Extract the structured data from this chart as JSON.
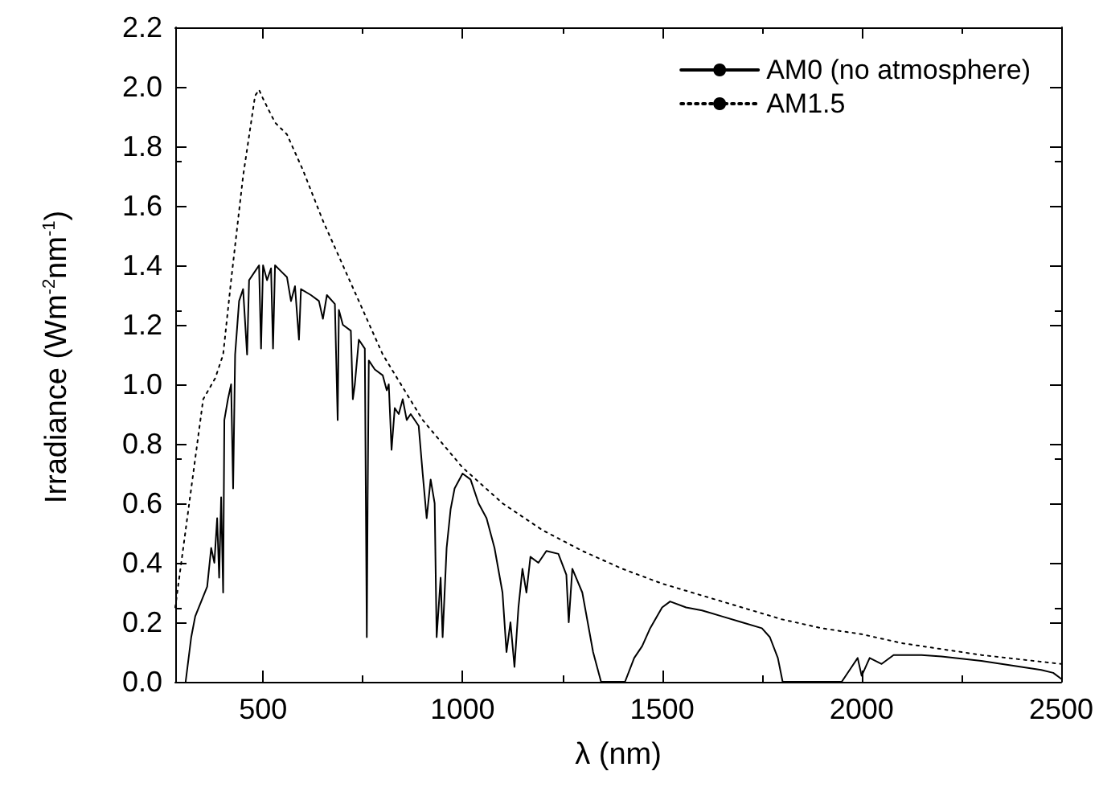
{
  "chart_data": {
    "type": "line",
    "xlabel": "λ (nm)",
    "ylabel": "Irradiance (Wm$^{-2}$nm$^{-1}$)",
    "xlim": [
      280,
      2500
    ],
    "xticks": [
      500,
      1000,
      1500,
      2000,
      2500
    ],
    "ylim": [
      0,
      2.2
    ],
    "yticks": [
      {
        "value": 0,
        "label": "0.0"
      },
      {
        "value": 0.2,
        "label": "0.2"
      },
      {
        "value": 0.4,
        "label": "0.4"
      },
      {
        "value": 0.6,
        "label": "0.6"
      },
      {
        "value": 0.8,
        "label": "0.8"
      },
      {
        "value": 1,
        "label": "1.0"
      },
      {
        "value": 1.2,
        "label": "1.2"
      },
      {
        "value": 1.4,
        "label": "1.4"
      },
      {
        "value": 1.6,
        "label": "1.6"
      },
      {
        "value": 1.8,
        "label": "1.8"
      },
      {
        "value": 2,
        "label": "2.0"
      },
      {
        "value": 2.2,
        "label": "2.2"
      }
    ],
    "legend": "top right",
    "grid": false,
    "marker": "none",
    "series": [
      {
        "name": "AM0 (no atmosphere)",
        "color": "#000000",
        "line_style": "solid",
        "x": [
          306,
          320,
          330,
          345,
          360,
          370,
          378,
          385,
          390,
          395,
          400,
          403,
          412,
          420,
          425,
          430,
          440,
          450,
          460,
          465,
          480,
          490,
          495,
          500,
          510,
          520,
          525,
          530,
          545,
          560,
          570,
          580,
          590,
          595,
          620,
          640,
          650,
          660,
          680,
          687,
          690,
          700,
          720,
          725,
          730,
          740,
          755,
          760,
          762,
          765,
          780,
          800,
          810,
          815,
          822,
          830,
          840,
          850,
          860,
          870,
          890,
          900,
          910,
          920,
          930,
          935,
          945,
          950,
          960,
          970,
          980,
          1000,
          1020,
          1040,
          1060,
          1080,
          1100,
          1110,
          1120,
          1130,
          1140,
          1150,
          1160,
          1170,
          1190,
          1210,
          1240,
          1260,
          1266,
          1275,
          1300,
          1327,
          1347,
          1407,
          1430,
          1450,
          1470,
          1500,
          1520,
          1560,
          1600,
          1650,
          1700,
          1750,
          1770,
          1790,
          1802,
          1950,
          1975,
          1990,
          2000,
          2020,
          2050,
          2080,
          2150,
          2200,
          2300,
          2400,
          2450,
          2480,
          2500
        ],
        "values": [
          0,
          0.15,
          0.22,
          0.27,
          0.32,
          0.45,
          0.4,
          0.55,
          0.35,
          0.62,
          0.3,
          0.88,
          0.95,
          1.0,
          0.65,
          1.1,
          1.28,
          1.32,
          1.1,
          1.35,
          1.38,
          1.4,
          1.12,
          1.4,
          1.35,
          1.39,
          1.12,
          1.4,
          1.38,
          1.36,
          1.28,
          1.33,
          1.15,
          1.32,
          1.3,
          1.28,
          1.22,
          1.3,
          1.27,
          0.88,
          1.25,
          1.2,
          1.18,
          0.95,
          1.0,
          1.15,
          1.12,
          0.15,
          0.6,
          1.08,
          1.05,
          1.03,
          0.98,
          1.0,
          0.78,
          0.92,
          0.9,
          0.95,
          0.88,
          0.9,
          0.86,
          0.7,
          0.55,
          0.68,
          0.6,
          0.15,
          0.35,
          0.15,
          0.45,
          0.58,
          0.65,
          0.7,
          0.68,
          0.6,
          0.55,
          0.45,
          0.3,
          0.1,
          0.2,
          0.05,
          0.25,
          0.38,
          0.3,
          0.42,
          0.4,
          0.44,
          0.43,
          0.36,
          0.2,
          0.38,
          0.3,
          0.1,
          0,
          0,
          0.08,
          0.12,
          0.18,
          0.25,
          0.27,
          0.25,
          0.24,
          0.22,
          0.2,
          0.18,
          0.15,
          0.08,
          0,
          0,
          0.05,
          0.08,
          0.02,
          0.08,
          0.06,
          0.09,
          0.09,
          0.085,
          0.07,
          0.05,
          0.04,
          0.03,
          0.01
        ]
      },
      {
        "name": "AM1.5",
        "color": "#000000",
        "line_style": "dotted",
        "x": [
          280,
          300,
          330,
          350,
          380,
          400,
          420,
          450,
          480,
          490,
          500,
          530,
          560,
          600,
          650,
          700,
          750,
          800,
          900,
          1000,
          1100,
          1200,
          1300,
          1400,
          1500,
          1600,
          1700,
          1800,
          1900,
          2000,
          2100,
          2200,
          2300,
          2400,
          2500
        ],
        "values": [
          0.25,
          0.45,
          0.75,
          0.95,
          1.02,
          1.1,
          1.35,
          1.7,
          1.97,
          1.99,
          1.96,
          1.88,
          1.84,
          1.72,
          1.55,
          1.4,
          1.25,
          1.1,
          0.88,
          0.72,
          0.6,
          0.51,
          0.44,
          0.38,
          0.33,
          0.29,
          0.25,
          0.21,
          0.18,
          0.16,
          0.13,
          0.11,
          0.09,
          0.075,
          0.06
        ]
      }
    ]
  }
}
